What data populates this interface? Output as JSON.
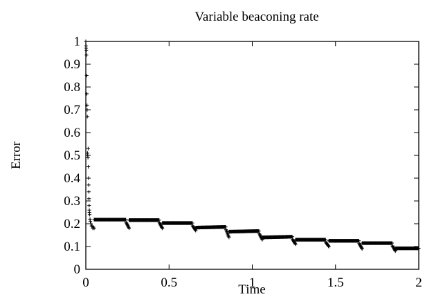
{
  "chart_data": {
    "type": "scatter",
    "title": "Variable beaconing rate",
    "xlabel": "Time",
    "ylabel": "Error",
    "xlim": [
      0,
      2
    ],
    "ylim": [
      0,
      1
    ],
    "x_ticks": [
      "0",
      "0.5",
      "1",
      "1.5",
      "2"
    ],
    "y_ticks": [
      "0",
      "0.1",
      "0.2",
      "0.3",
      "0.4",
      "0.5",
      "0.6",
      "0.7",
      "0.8",
      "0.9",
      "1"
    ],
    "grid": false,
    "legend": "none",
    "marker": "+",
    "marker_color": "#000000",
    "series": [
      {
        "decay": [
          [
            0.0,
            1.0
          ],
          [
            0.001,
            0.98
          ],
          [
            0.002,
            0.97
          ],
          [
            0.003,
            0.96
          ],
          [
            0.004,
            0.94
          ],
          [
            0.005,
            0.85
          ],
          [
            0.006,
            0.77
          ],
          [
            0.007,
            0.72
          ],
          [
            0.008,
            0.7
          ],
          [
            0.009,
            0.67
          ],
          [
            0.01,
            0.51
          ],
          [
            0.011,
            0.5
          ],
          [
            0.012,
            0.5
          ],
          [
            0.013,
            0.49
          ],
          [
            0.014,
            0.53
          ],
          [
            0.015,
            0.45
          ],
          [
            0.016,
            0.4
          ],
          [
            0.017,
            0.37
          ],
          [
            0.018,
            0.34
          ],
          [
            0.019,
            0.31
          ],
          [
            0.02,
            0.28
          ],
          [
            0.021,
            0.26
          ],
          [
            0.022,
            0.25
          ],
          [
            0.023,
            0.24
          ],
          [
            0.025,
            0.22
          ],
          [
            0.027,
            0.21
          ],
          [
            0.03,
            0.2
          ],
          [
            0.034,
            0.19
          ],
          [
            0.038,
            0.19
          ],
          [
            0.042,
            0.18
          ],
          [
            0.046,
            0.185
          ],
          [
            0.05,
            0.18
          ]
        ],
        "segments": [
          {
            "x_start": 0.05,
            "x_end": 0.24,
            "y_start": 0.218,
            "y_end": 0.218,
            "dip_y": 0.18
          },
          {
            "x_start": 0.26,
            "x_end": 0.44,
            "y_start": 0.216,
            "y_end": 0.216,
            "dip_y": 0.18
          },
          {
            "x_start": 0.46,
            "x_end": 0.64,
            "y_start": 0.203,
            "y_end": 0.203,
            "dip_y": 0.17
          },
          {
            "x_start": 0.66,
            "x_end": 0.84,
            "y_start": 0.183,
            "y_end": 0.186,
            "dip_y": 0.14
          },
          {
            "x_start": 0.86,
            "x_end": 1.04,
            "y_start": 0.165,
            "y_end": 0.168,
            "dip_y": 0.13
          },
          {
            "x_start": 1.06,
            "x_end": 1.24,
            "y_start": 0.14,
            "y_end": 0.143,
            "dip_y": 0.11
          },
          {
            "x_start": 1.26,
            "x_end": 1.44,
            "y_start": 0.13,
            "y_end": 0.13,
            "dip_y": 0.1
          },
          {
            "x_start": 1.46,
            "x_end": 1.64,
            "y_start": 0.125,
            "y_end": 0.125,
            "dip_y": 0.09
          },
          {
            "x_start": 1.66,
            "x_end": 1.84,
            "y_start": 0.115,
            "y_end": 0.115,
            "dip_y": 0.08
          },
          {
            "x_start": 1.86,
            "x_end": 2.0,
            "y_start": 0.092,
            "y_end": 0.092,
            "dip_y": null
          }
        ]
      }
    ]
  }
}
